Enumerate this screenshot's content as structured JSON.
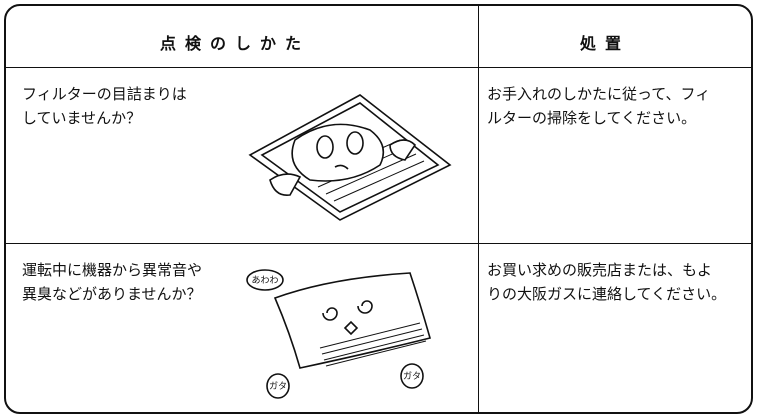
{
  "header": {
    "check": "点検のしかた",
    "action": "処置"
  },
  "rows": [
    {
      "check": [
        "フィルターの目詰まりは",
        "していませんか？"
      ],
      "action": [
        "お手入れのしかたに従って、フィ",
        "ルターの掃除をしてください。"
      ]
    },
    {
      "check": [
        "運転中に機器から異常音や",
        "異臭などがありませんか？"
      ],
      "action": [
        "お買い求めの販売店または、もよ",
        "りの大阪ガスに連絡してください。"
      ],
      "sounds": [
        "あわわ",
        "ガタ",
        "ガタ"
      ]
    }
  ]
}
